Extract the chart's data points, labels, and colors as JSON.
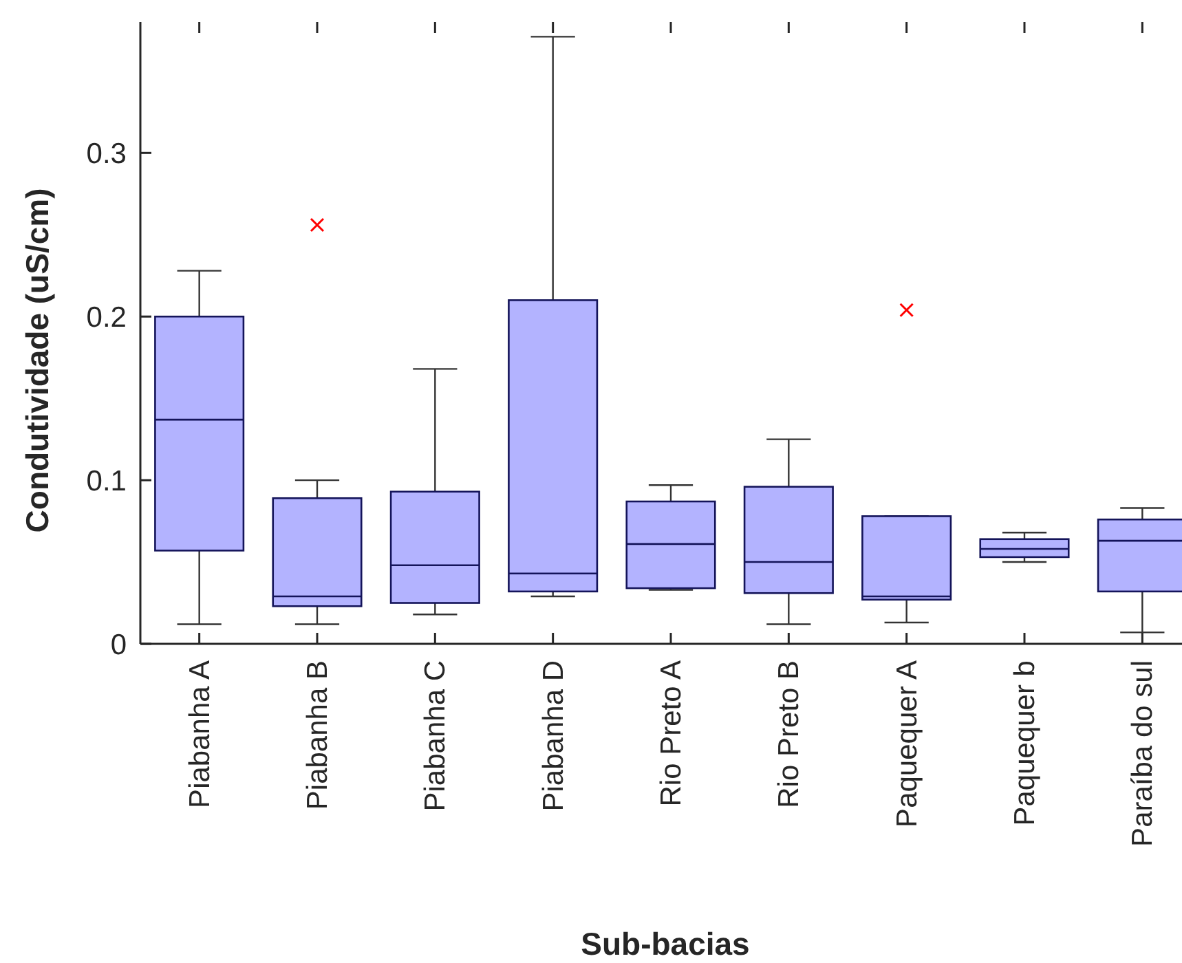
{
  "chart_data": {
    "type": "box",
    "xlabel": "Sub-bacias",
    "ylabel": "Condutividade (uS/cm)",
    "categories": [
      "Piabanha A",
      "Piabanha B",
      "Piabanha C",
      "Piabanha D",
      "Rio Preto A",
      "Rio Preto B",
      "Paquequer A",
      "Paquequer b",
      "Paraíba do sul"
    ],
    "series": [
      {
        "color": "#b3b3ff",
        "boxes": [
          {
            "low": 0.012,
            "q1": 0.057,
            "median": 0.137,
            "q3": 0.2,
            "high": 0.228
          },
          {
            "low": 0.012,
            "q1": 0.023,
            "median": 0.029,
            "q3": 0.089,
            "high": 0.1,
            "outliers": [
              0.256
            ]
          },
          {
            "low": 0.018,
            "q1": 0.025,
            "median": 0.048,
            "q3": 0.093,
            "high": 0.168
          },
          {
            "low": 0.029,
            "q1": 0.032,
            "median": 0.043,
            "q3": 0.21,
            "high": 0.371
          },
          {
            "low": 0.033,
            "q1": 0.034,
            "median": 0.061,
            "q3": 0.087,
            "high": 0.097
          },
          {
            "low": 0.012,
            "q1": 0.031,
            "median": 0.05,
            "q3": 0.096,
            "high": 0.125
          },
          {
            "low": 0.013,
            "q1": 0.027,
            "median": 0.029,
            "q3": 0.078,
            "high": 0.078,
            "outliers": [
              0.204
            ]
          },
          {
            "low": 0.05,
            "q1": 0.053,
            "median": 0.058,
            "q3": 0.064,
            "high": 0.068
          },
          {
            "low": 0.007,
            "q1": 0.032,
            "median": 0.063,
            "q3": 0.076,
            "high": 0.083
          }
        ]
      }
    ],
    "ylim": [
      0,
      0.38
    ],
    "yticks": [
      0,
      0.1,
      0.2,
      0.3
    ],
    "grid": false,
    "marker": "cross"
  }
}
